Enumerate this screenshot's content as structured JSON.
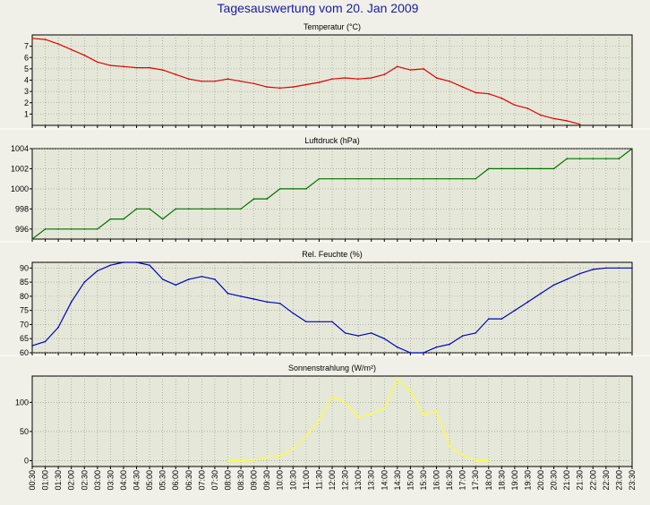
{
  "title": "Tagesauswertung vom 20. Jan 2009",
  "colors": {
    "background": "#f0f0e8",
    "plot_background": "#e5e8d8",
    "grid": "#909090",
    "title": "#1a1aa0",
    "temperature": "#e00000",
    "pressure": "#007000",
    "humidity": "#0000c0",
    "radiation": "#ffff30"
  },
  "time_labels": [
    "00:30",
    "01:00",
    "01:30",
    "02:00",
    "02:30",
    "03:00",
    "03:30",
    "04:00",
    "04:30",
    "05:00",
    "05:30",
    "06:00",
    "06:30",
    "07:00",
    "07:30",
    "08:00",
    "08:30",
    "09:00",
    "09:30",
    "10:00",
    "10:30",
    "11:00",
    "11:30",
    "12:00",
    "12:30",
    "13:00",
    "13:30",
    "14:00",
    "14:30",
    "15:00",
    "15:30",
    "16:00",
    "16:30",
    "17:00",
    "17:30",
    "18:00",
    "18:30",
    "19:00",
    "19:30",
    "20:00",
    "20:30",
    "21:00",
    "21:30",
    "22:00",
    "22:30",
    "23:00",
    "23:30"
  ],
  "chart_data": [
    {
      "type": "line",
      "title": "Temperatur (°C)",
      "ylim": [
        0,
        8
      ],
      "yticks": [
        1,
        2,
        3,
        4,
        5,
        6,
        7
      ],
      "grid": true,
      "series": [
        {
          "color": "#e00000",
          "x": [
            0.5,
            1.0,
            1.5,
            2.0,
            2.5,
            3.0,
            3.5,
            4.0,
            4.5,
            5.0,
            5.5,
            6.0,
            6.5,
            7.0,
            7.5,
            8.0,
            8.5,
            9.0,
            9.5,
            10.0,
            10.5,
            11.0,
            11.5,
            12.0,
            12.5,
            13.0,
            13.5,
            14.0,
            14.5,
            15.0,
            15.5,
            16.0,
            16.5,
            17.0,
            17.5,
            18.0,
            18.5,
            19.0,
            19.5,
            20.0,
            20.5,
            21.0,
            21.5
          ],
          "values": [
            7.7,
            7.6,
            7.2,
            6.7,
            6.2,
            5.6,
            5.3,
            5.2,
            5.1,
            5.1,
            4.9,
            4.5,
            4.1,
            3.9,
            3.9,
            4.1,
            3.9,
            3.7,
            3.4,
            3.3,
            3.4,
            3.6,
            3.8,
            4.1,
            4.2,
            4.1,
            4.2,
            4.5,
            5.2,
            4.9,
            5.0,
            4.2,
            3.9,
            3.4,
            2.9,
            2.8,
            2.4,
            1.8,
            1.5,
            0.9,
            0.6,
            0.4,
            0.1
          ]
        }
      ]
    },
    {
      "type": "line",
      "title": "Luftdruck (hPa)",
      "ylim": [
        995,
        1004
      ],
      "yticks": [
        996,
        998,
        1000,
        1002,
        1004
      ],
      "grid": true,
      "series": [
        {
          "color": "#007000",
          "x": [
            0.5,
            1.0,
            1.5,
            2.0,
            2.5,
            3.0,
            3.5,
            4.0,
            4.5,
            5.0,
            5.5,
            6.0,
            6.5,
            7.0,
            7.5,
            8.0,
            8.5,
            9.0,
            9.5,
            10.0,
            10.5,
            11.0,
            11.5,
            12.0,
            12.5,
            13.0,
            13.5,
            14.0,
            14.5,
            15.0,
            15.5,
            16.0,
            16.5,
            17.0,
            17.5,
            18.0,
            18.5,
            19.0,
            19.5,
            20.0,
            20.5,
            21.0,
            21.5,
            22.0,
            22.5,
            23.0,
            23.5
          ],
          "values": [
            995,
            996,
            996,
            996,
            996,
            996,
            997,
            997,
            998,
            998,
            997,
            998,
            998,
            998,
            998,
            998,
            998,
            999,
            999,
            1000,
            1000,
            1000,
            1001,
            1001,
            1001,
            1001,
            1001,
            1001,
            1001,
            1001,
            1001,
            1001,
            1001,
            1001,
            1001,
            1002,
            1002,
            1002,
            1002,
            1002,
            1002,
            1003,
            1003,
            1003,
            1003,
            1003,
            1004
          ]
        }
      ]
    },
    {
      "type": "line",
      "title": "Rel. Feuchte (%)",
      "ylim": [
        60,
        92
      ],
      "yticks": [
        60,
        65,
        70,
        75,
        80,
        85,
        90
      ],
      "grid": true,
      "series": [
        {
          "color": "#0000c0",
          "x": [
            0.5,
            1.0,
            1.5,
            2.0,
            2.5,
            3.0,
            3.5,
            4.0,
            4.5,
            5.0,
            5.5,
            6.0,
            6.5,
            7.0,
            7.5,
            8.0,
            8.5,
            9.0,
            9.5,
            10.0,
            10.5,
            11.0,
            11.5,
            12.0,
            12.5,
            13.0,
            13.5,
            14.0,
            14.5,
            15.0,
            15.5,
            16.0,
            16.5,
            17.0,
            17.5,
            18.0,
            18.5,
            19.0,
            19.5,
            20.0,
            20.5,
            21.0,
            21.5,
            22.0,
            22.5,
            23.0,
            23.5
          ],
          "values": [
            62.5,
            64,
            69,
            78,
            85,
            89,
            91,
            92,
            92,
            91,
            86,
            84,
            86,
            87,
            86,
            81,
            80,
            79,
            78,
            77.5,
            74,
            71,
            71,
            71,
            67,
            66,
            67,
            65,
            62,
            60,
            60,
            62,
            63,
            66,
            67,
            72,
            72,
            75,
            78,
            81,
            84,
            86,
            88,
            89.5,
            90,
            90,
            90
          ]
        }
      ]
    },
    {
      "type": "line",
      "title": "Sonnenstrahlung (W/m²)",
      "ylim": [
        -10,
        145
      ],
      "yticks": [
        0,
        50,
        100
      ],
      "grid": true,
      "series": [
        {
          "color": "#ffff30",
          "x": [
            8.0,
            8.5,
            9.0,
            9.5,
            10.0,
            10.5,
            11.0,
            11.5,
            12.0,
            12.5,
            13.0,
            13.5,
            14.0,
            14.5,
            15.0,
            15.5,
            16.0,
            16.5,
            17.0,
            17.5,
            18.0
          ],
          "values": [
            0,
            0,
            1,
            5,
            8,
            20,
            42,
            70,
            110,
            100,
            75,
            80,
            90,
            140,
            120,
            78,
            85,
            25,
            10,
            0,
            0
          ]
        }
      ]
    }
  ]
}
